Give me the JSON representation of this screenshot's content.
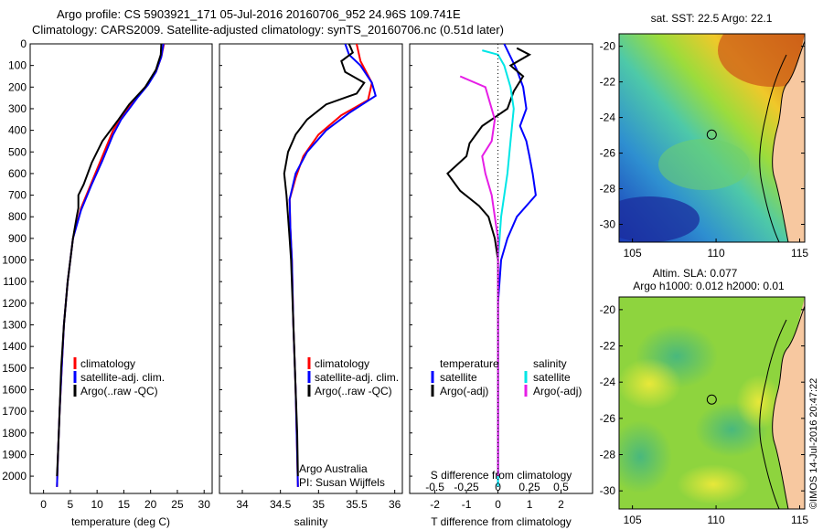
{
  "header": {
    "line1": "Argo profile: CS 5903921_171 05-Jul-2016 20160706_952 24.96S 109.741E",
    "line2": "Climatology: CARS2009. Satellite-adjusted climatology: synTS_20160706.nc (0.51d later)"
  },
  "colors": {
    "climatology": "#ff0000",
    "satellite": "#0000ff",
    "argo": "#000000",
    "sal_sat": "#00e6e6",
    "sal_argo": "#e61ee6"
  },
  "depth_ticks": [
    0,
    100,
    200,
    300,
    400,
    500,
    600,
    700,
    800,
    900,
    1000,
    1100,
    1200,
    1300,
    1400,
    1500,
    1600,
    1700,
    1800,
    1900,
    2000
  ],
  "chart_data": [
    {
      "type": "line",
      "xlabel": "temperature (deg C)",
      "x_ticks": [
        "0",
        "5",
        "10",
        "15",
        "20",
        "25",
        "30"
      ],
      "xlim": [
        -2.5,
        31.5
      ],
      "ylim": [
        2080,
        0
      ],
      "legend": [
        "climatology",
        "satellite-adj. clim.",
        "Argo(..raw -QC)"
      ],
      "series": [
        {
          "name": "climatology",
          "color": "#ff0000",
          "points": [
            [
              22.5,
              0
            ],
            [
              22,
              60
            ],
            [
              21,
              130
            ],
            [
              19,
              200
            ],
            [
              17,
              260
            ],
            [
              15,
              320
            ],
            [
              13,
              400
            ],
            [
              11,
              520
            ],
            [
              9,
              640
            ],
            [
              7,
              760
            ],
            [
              5.5,
              900
            ],
            [
              4.5,
              1100
            ],
            [
              3.8,
              1300
            ],
            [
              3.4,
              1500
            ],
            [
              3,
              1700
            ],
            [
              2.7,
              1900
            ],
            [
              2.5,
              2050
            ]
          ]
        },
        {
          "name": "satellite-adj. clim.",
          "color": "#0000ff",
          "points": [
            [
              22.4,
              0
            ],
            [
              22,
              60
            ],
            [
              21,
              130
            ],
            [
              19.5,
              190
            ],
            [
              17.5,
              250
            ],
            [
              16,
              300
            ],
            [
              14.5,
              350
            ],
            [
              13,
              420
            ],
            [
              11,
              540
            ],
            [
              9,
              650
            ],
            [
              7,
              770
            ],
            [
              5.5,
              900
            ],
            [
              4.5,
              1100
            ],
            [
              3.8,
              1300
            ],
            [
              3.4,
              1500
            ],
            [
              3,
              1700
            ],
            [
              2.7,
              1900
            ],
            [
              2.5,
              2050
            ]
          ]
        },
        {
          "name": "Argo(..raw -QC)",
          "color": "#000000",
          "points": [
            [
              22,
              0
            ],
            [
              21.9,
              50
            ],
            [
              21,
              120
            ],
            [
              19,
              200
            ],
            [
              16,
              280
            ],
            [
              14,
              350
            ],
            [
              11,
              450
            ],
            [
              9,
              550
            ],
            [
              7.5,
              650
            ],
            [
              6.5,
              700
            ],
            [
              6.5,
              760
            ],
            [
              6.2,
              800
            ],
            [
              5.5,
              900
            ],
            [
              4.5,
              1100
            ],
            [
              3.8,
              1300
            ],
            [
              3.3,
              1500
            ],
            [
              3,
              1700
            ],
            [
              2.7,
              1900
            ],
            [
              2.5,
              2000
            ]
          ]
        }
      ]
    },
    {
      "type": "line",
      "xlabel": "salinity",
      "x_ticks": [
        "34",
        "34.5",
        "35",
        "35.5",
        "36"
      ],
      "xlim": [
        33.7,
        36.1
      ],
      "ylim": [
        2080,
        0
      ],
      "legend": [
        "climatology",
        "satellite-adj. clim.",
        "Argo(..raw -QC)"
      ],
      "annotation": [
        "Argo Australia",
        "PI: Susan Wijffels"
      ],
      "series": [
        {
          "name": "climatology",
          "color": "#ff0000",
          "points": [
            [
              35.5,
              0
            ],
            [
              35.55,
              80
            ],
            [
              35.7,
              180
            ],
            [
              35.65,
              260
            ],
            [
              35.3,
              330
            ],
            [
              35,
              420
            ],
            [
              34.8,
              520
            ],
            [
              34.7,
              620
            ],
            [
              34.62,
              720
            ],
            [
              34.63,
              850
            ],
            [
              34.65,
              1000
            ],
            [
              34.67,
              1300
            ],
            [
              34.7,
              1600
            ],
            [
              34.72,
              1900
            ],
            [
              34.73,
              2050
            ]
          ]
        },
        {
          "name": "satellite-adj. clim.",
          "color": "#0000ff",
          "points": [
            [
              35.35,
              0
            ],
            [
              35.4,
              50
            ],
            [
              35.55,
              100
            ],
            [
              35.7,
              180
            ],
            [
              35.75,
              240
            ],
            [
              35.4,
              320
            ],
            [
              35.1,
              400
            ],
            [
              34.85,
              500
            ],
            [
              34.7,
              600
            ],
            [
              34.62,
              720
            ],
            [
              34.63,
              850
            ],
            [
              34.65,
              1000
            ],
            [
              34.67,
              1300
            ],
            [
              34.7,
              1600
            ],
            [
              34.72,
              1900
            ],
            [
              34.73,
              2050
            ]
          ]
        },
        {
          "name": "Argo(..raw -QC)",
          "color": "#000000",
          "points": [
            [
              35.4,
              0
            ],
            [
              35.45,
              40
            ],
            [
              35.3,
              80
            ],
            [
              35.35,
              130
            ],
            [
              35.6,
              180
            ],
            [
              35.5,
              230
            ],
            [
              35.1,
              280
            ],
            [
              34.85,
              350
            ],
            [
              34.7,
              420
            ],
            [
              34.6,
              500
            ],
            [
              34.55,
              600
            ],
            [
              34.58,
              700
            ],
            [
              34.6,
              800
            ],
            [
              34.62,
              900
            ],
            [
              34.64,
              1000
            ],
            [
              34.66,
              1200
            ],
            [
              34.68,
              1400
            ],
            [
              34.7,
              1600
            ],
            [
              34.72,
              1800
            ],
            [
              34.73,
              2000
            ]
          ]
        }
      ]
    },
    {
      "type": "line",
      "xlabel": "T difference from climatology",
      "x2label": "S difference from climatology",
      "x_ticks": [
        "-2",
        "-1",
        "0",
        "1",
        "2"
      ],
      "x2_ticks": [
        "-0.5",
        "-0.25",
        "0",
        "0.25",
        "0.5"
      ],
      "xlim": [
        -2.8,
        3.0
      ],
      "ylim": [
        2080,
        0
      ],
      "legend_left": {
        "title": "temperature",
        "items": [
          "satellite",
          "Argo(-adj)"
        ]
      },
      "legend_right": {
        "title": "salinity",
        "items": [
          "satellite",
          "Argo(-adj)"
        ]
      },
      "series": [
        {
          "name": "T satellite",
          "color": "#0000ff",
          "points": [
            [
              0.2,
              0
            ],
            [
              0.4,
              60
            ],
            [
              0.6,
              120
            ],
            [
              0.8,
              200
            ],
            [
              0.9,
              300
            ],
            [
              0.7,
              380
            ],
            [
              0.9,
              450
            ],
            [
              1.0,
              520
            ],
            [
              1.1,
              600
            ],
            [
              1.2,
              700
            ],
            [
              0.6,
              800
            ],
            [
              0.3,
              900
            ],
            [
              0.1,
              1000
            ],
            [
              0,
              1200
            ],
            [
              0,
              1600
            ],
            [
              0,
              2050
            ]
          ]
        },
        {
          "name": "T Argo(-adj)",
          "color": "#000000",
          "points": [
            [
              0.6,
              20
            ],
            [
              1.0,
              50
            ],
            [
              0.4,
              100
            ],
            [
              0.8,
              150
            ],
            [
              0.5,
              220
            ],
            [
              0.3,
              300
            ],
            [
              -0.5,
              380
            ],
            [
              -0.9,
              460
            ],
            [
              -1.0,
              520
            ],
            [
              -1.6,
              600
            ],
            [
              -1.2,
              680
            ],
            [
              -0.6,
              750
            ],
            [
              -0.3,
              800
            ],
            [
              -0.1,
              900
            ],
            [
              0,
              1000
            ],
            [
              0,
              1300
            ],
            [
              0,
              1700
            ],
            [
              0,
              2000
            ]
          ]
        },
        {
          "name": "S satellite",
          "color": "#00e6e6",
          "points": [
            [
              -0.5,
              30
            ],
            [
              0,
              50
            ],
            [
              0.2,
              100
            ],
            [
              0.4,
              200
            ],
            [
              0.5,
              300
            ],
            [
              0.4,
              450
            ],
            [
              0.3,
              600
            ],
            [
              0.1,
              800
            ],
            [
              0,
              1000
            ],
            [
              0,
              1500
            ],
            [
              0,
              2050
            ]
          ]
        },
        {
          "name": "S Argo(-adj)",
          "color": "#e61ee6",
          "points": [
            [
              -1.2,
              150
            ],
            [
              -0.4,
              200
            ],
            [
              -0.1,
              350
            ],
            [
              -0.2,
              450
            ],
            [
              -0.5,
              520
            ],
            [
              -0.4,
              600
            ],
            [
              -0.2,
              700
            ],
            [
              -0.1,
              800
            ],
            [
              0,
              900
            ],
            [
              0,
              1000
            ],
            [
              0,
              1300
            ],
            [
              0,
              1700
            ],
            [
              0,
              2000
            ]
          ]
        }
      ]
    },
    {
      "type": "heatmap",
      "title": "sat. SST: 22.5 Argo: 22.1",
      "x_ticks": [
        "105",
        "110",
        "115"
      ],
      "y_ticks": [
        "-20",
        "-22",
        "-24",
        "-26",
        "-28",
        "-30"
      ],
      "xlim": [
        104.2,
        115.3
      ],
      "ylim": [
        -31,
        -19.3
      ],
      "marker": [
        109.74,
        -24.96
      ]
    },
    {
      "type": "heatmap",
      "title_lines": [
        "Altim. SLA: 0.077",
        "Argo h1000: 0.012 h2000: 0.01"
      ],
      "x_ticks": [
        "105",
        "110",
        "115"
      ],
      "y_ticks": [
        "-20",
        "-22",
        "-24",
        "-26",
        "-28",
        "-30"
      ],
      "xlim": [
        104.2,
        115.3
      ],
      "ylim": [
        -31,
        -19.3
      ],
      "marker": [
        109.74,
        -24.96
      ]
    }
  ],
  "footer": {
    "stamp": "©IMOS 14-Jul-2016 20:47:22"
  }
}
